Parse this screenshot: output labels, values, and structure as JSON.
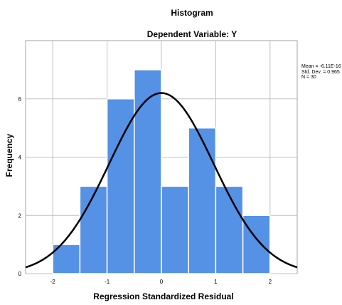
{
  "chart_data": {
    "type": "bar",
    "title": "Histogram",
    "subtitle": "Dependent Variable: Y",
    "xlabel": "Regression Standardized Residual",
    "ylabel": "Frequency",
    "bins": [
      {
        "start": -2.0,
        "end": -1.5,
        "count": 1
      },
      {
        "start": -1.5,
        "end": -1.0,
        "count": 3
      },
      {
        "start": -1.0,
        "end": -0.5,
        "count": 6
      },
      {
        "start": -0.5,
        "end": 0.0,
        "count": 7
      },
      {
        "start": 0.0,
        "end": 0.5,
        "count": 3
      },
      {
        "start": 0.5,
        "end": 1.0,
        "count": 5
      },
      {
        "start": 1.0,
        "end": 1.5,
        "count": 3
      },
      {
        "start": 1.5,
        "end": 2.0,
        "count": 2
      }
    ],
    "x_ticks": [
      -2,
      -1,
      0,
      1,
      2
    ],
    "x_tick_labels": [
      "-2",
      "-1",
      "0",
      "1",
      "2"
    ],
    "y_ticks": [
      0,
      2,
      4,
      6
    ],
    "y_tick_labels": [
      "0",
      "2",
      "4",
      "6"
    ],
    "xlim": [
      -2.5,
      2.5
    ],
    "ylim": [
      0,
      8
    ],
    "grid": true,
    "normal_curve": {
      "mean": -6.11e-16,
      "std": 0.965,
      "n": 30,
      "bin_width": 0.5
    },
    "stats": {
      "mean": "Mean = -6.11E-16",
      "std_dev": "Std. Dev. = 0.965",
      "n": "N = 30"
    },
    "colors": {
      "bar": "#5591e4",
      "bar_edge": "#ffffff",
      "curve": "#000000",
      "grid": "#c0c0c0"
    }
  }
}
